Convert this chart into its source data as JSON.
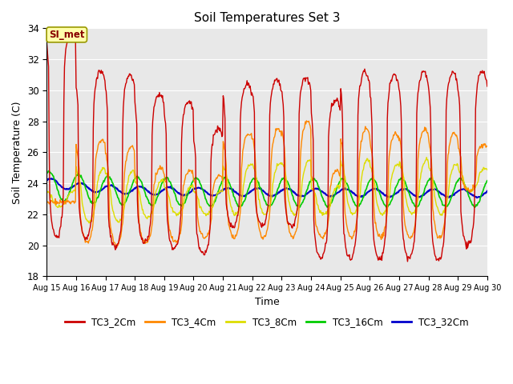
{
  "title": "Soil Temperatures Set 3",
  "xlabel": "Time",
  "ylabel": "Soil Temperature (C)",
  "ylim": [
    18,
    34
  ],
  "background_color": "#e8e8e8",
  "series_colors": {
    "TC3_2Cm": "#cc0000",
    "TC3_4Cm": "#ff8800",
    "TC3_8Cm": "#dddd00",
    "TC3_16Cm": "#00cc00",
    "TC3_32Cm": "#0000cc"
  },
  "series_lw": {
    "TC3_2Cm": 1.0,
    "TC3_4Cm": 1.0,
    "TC3_8Cm": 1.0,
    "TC3_16Cm": 1.2,
    "TC3_32Cm": 1.5
  },
  "label_text": "SI_met",
  "label_facecolor": "#ffffaa",
  "label_edgecolor": "#999900",
  "tick_labels": [
    "Aug 15",
    "Aug 16",
    "Aug 17",
    "Aug 18",
    "Aug 19",
    "Aug 20",
    "Aug 21",
    "Aug 22",
    "Aug 23",
    "Aug 24",
    "Aug 25",
    "Aug 26",
    "Aug 27",
    "Aug 28",
    "Aug 29",
    "Aug 30"
  ],
  "yticks": [
    18,
    20,
    22,
    24,
    26,
    28,
    30,
    32,
    34
  ],
  "n_days": 15,
  "samples_per_day": 48,
  "tc2_peaks": [
    34.0,
    20.5,
    31.2,
    20.5,
    31.0,
    19.8,
    29.8,
    20.2,
    29.3,
    19.8,
    27.5,
    19.5,
    30.4,
    21.2,
    30.7,
    21.3,
    30.8,
    21.2,
    29.4,
    19.2,
    31.2,
    19.1,
    31.0,
    19.1,
    31.2,
    19.2,
    31.2,
    19.0,
    31.2,
    20.0
  ],
  "tc4_peaks": [
    22.8,
    22.8,
    26.8,
    20.2,
    26.4,
    20.0,
    25.0,
    20.2,
    24.8,
    20.2,
    24.5,
    20.5,
    27.2,
    20.5,
    27.5,
    20.5,
    28.0,
    20.5,
    24.8,
    20.5,
    27.5,
    20.5,
    27.2,
    20.5,
    27.5,
    20.5,
    27.2,
    20.5,
    26.5,
    23.5
  ],
  "tc8_peaks": [
    23.5,
    22.5,
    25.0,
    21.5,
    24.8,
    21.5,
    24.2,
    21.8,
    23.8,
    22.0,
    23.5,
    22.0,
    25.2,
    22.0,
    25.3,
    22.0,
    25.5,
    22.0,
    23.8,
    22.0,
    25.5,
    22.0,
    25.2,
    22.0,
    25.5,
    22.0,
    25.2,
    22.0,
    25.0,
    23.5
  ],
  "tc16_base": 23.4,
  "tc16_amp": 0.9,
  "tc32_base": 23.5,
  "tc32_amp": 0.25
}
